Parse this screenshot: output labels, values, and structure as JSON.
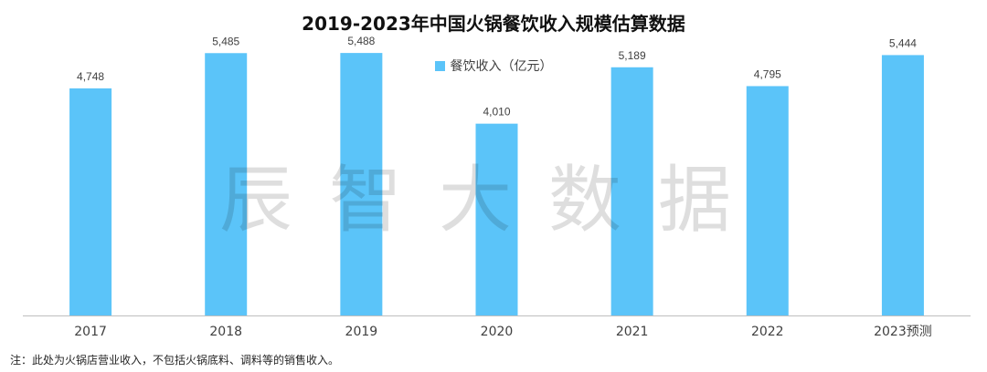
{
  "chart_data": {
    "type": "bar",
    "title": "2019-2023年中国火锅餐饮收入规模估算数据",
    "categories": [
      "2017",
      "2018",
      "2019",
      "2020",
      "2021",
      "2022",
      "2023预测"
    ],
    "series": [
      {
        "name": "餐饮收入（亿元）",
        "values": [
          4748,
          5485,
          5488,
          4010,
          5189,
          4795,
          5444
        ],
        "color": "#5bc4f9"
      }
    ],
    "data_labels": [
      "4,748",
      "5,485",
      "5,488",
      "4,010",
      "5,189",
      "4,795",
      "5,444"
    ],
    "legend_position": "top",
    "grid": false,
    "ylim": [
      0,
      6100
    ]
  },
  "watermark": "辰智大数据",
  "note": "注：此处为火锅店营业收入，不包括火锅底料、调料等的销售收入。",
  "colors": {
    "bar": "#5bc4f9",
    "axis": "#bfbfbf"
  }
}
